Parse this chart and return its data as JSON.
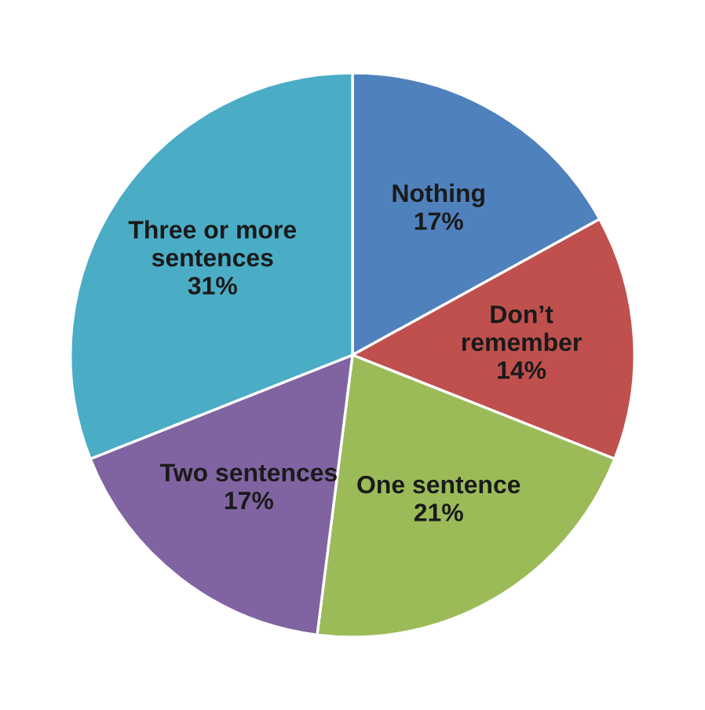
{
  "chart_data": {
    "type": "pie",
    "categories": [
      "Nothing",
      "Don’t remember",
      "One sentence",
      "Two sentences",
      "Three or more sentences"
    ],
    "values": [
      17,
      14,
      21,
      17,
      31
    ],
    "value_labels": [
      "17%",
      "14%",
      "21%",
      "17%",
      "31%"
    ],
    "colors": [
      "#4f81bd",
      "#c0504d",
      "#9bbb59",
      "#8064a2",
      "#4bacc6"
    ],
    "legend": false
  }
}
